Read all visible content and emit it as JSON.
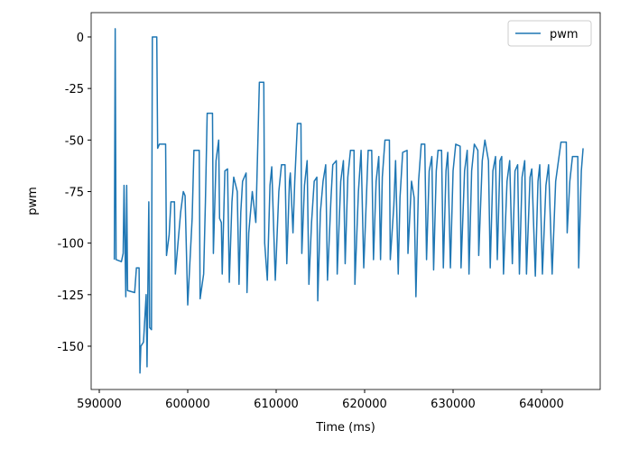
{
  "chart_data": {
    "type": "line",
    "xlabel": "Time (ms)",
    "ylabel": "pwm",
    "x": [
      591700,
      591800,
      591900,
      592500,
      592700,
      592800,
      593000,
      593100,
      593200,
      594000,
      594200,
      594500,
      594600,
      594700,
      595000,
      595300,
      595400,
      595600,
      595700,
      595900,
      596000,
      596500,
      596600,
      596800,
      597500,
      597600,
      597900,
      598100,
      598500,
      598600,
      599200,
      599500,
      599700,
      600000,
      600500,
      600700,
      601300,
      601400,
      601800,
      602000,
      602200,
      602800,
      602900,
      603200,
      603500,
      603600,
      603800,
      603900,
      604200,
      604500,
      604700,
      605000,
      605200,
      605600,
      605800,
      606000,
      606200,
      606600,
      606700,
      606900,
      607300,
      607700,
      608100,
      608600,
      608700,
      609000,
      609300,
      609500,
      609900,
      610300,
      610600,
      611000,
      611200,
      611500,
      611600,
      611900,
      612100,
      612400,
      612800,
      612900,
      613200,
      613500,
      613700,
      614000,
      614300,
      614600,
      614700,
      615000,
      615300,
      615600,
      615800,
      616200,
      616400,
      616800,
      616900,
      617300,
      617600,
      617800,
      618100,
      618400,
      618800,
      618900,
      619300,
      619600,
      619900,
      620200,
      620400,
      620800,
      621000,
      621300,
      621600,
      621800,
      622000,
      622300,
      622800,
      622900,
      623300,
      623500,
      623800,
      624000,
      624300,
      624800,
      624900,
      625300,
      625600,
      625800,
      626100,
      626400,
      626800,
      627000,
      627300,
      627600,
      627800,
      628100,
      628300,
      628700,
      628900,
      629200,
      629400,
      629700,
      630000,
      630300,
      630800,
      630900,
      631300,
      631600,
      631800,
      632100,
      632400,
      632800,
      632900,
      633300,
      633600,
      634000,
      634200,
      634500,
      634800,
      635000,
      635300,
      635500,
      635700,
      636100,
      636400,
      636700,
      637000,
      637300,
      637500,
      637800,
      638100,
      638300,
      638700,
      638900,
      639300,
      639600,
      639800,
      640100,
      640500,
      640800,
      641200,
      641600,
      642200,
      642800,
      642900,
      643200,
      643500,
      644100,
      644200,
      644500,
      644700
    ],
    "series": [
      {
        "name": "pwm",
        "color": "#1f77b4",
        "values": [
          -108,
          4,
          -108,
          -109,
          -105,
          -72,
          -126,
          -72,
          -123,
          -124,
          -112,
          -112,
          -163,
          -150,
          -148,
          -125,
          -160,
          -80,
          -141,
          -142,
          0,
          0,
          -54,
          -52,
          -52,
          -106,
          -96,
          -80,
          -80,
          -115,
          -85,
          -75,
          -77,
          -130,
          -88,
          -55,
          -55,
          -127,
          -115,
          -80,
          -37,
          -37,
          -105,
          -60,
          -50,
          -88,
          -90,
          -115,
          -65,
          -64,
          -119,
          -80,
          -68,
          -75,
          -120,
          -85,
          -70,
          -66,
          -124,
          -95,
          -75,
          -90,
          -22,
          -22,
          -100,
          -118,
          -72,
          -63,
          -118,
          -75,
          -62,
          -62,
          -110,
          -70,
          -66,
          -95,
          -70,
          -42,
          -42,
          -105,
          -72,
          -60,
          -120,
          -90,
          -70,
          -68,
          -128,
          -85,
          -70,
          -62,
          -118,
          -78,
          -62,
          -60,
          -115,
          -70,
          -60,
          -110,
          -68,
          -55,
          -55,
          -120,
          -75,
          -55,
          -112,
          -78,
          -55,
          -55,
          -108,
          -70,
          -58,
          -108,
          -68,
          -50,
          -50,
          -108,
          -82,
          -60,
          -115,
          -78,
          -56,
          -55,
          -105,
          -70,
          -78,
          -126,
          -70,
          -52,
          -52,
          -108,
          -65,
          -58,
          -113,
          -65,
          -55,
          -55,
          -112,
          -65,
          -56,
          -112,
          -65,
          -52,
          -53,
          -112,
          -65,
          -55,
          -115,
          -65,
          -52,
          -55,
          -106,
          -60,
          -50,
          -60,
          -112,
          -65,
          -58,
          -108,
          -60,
          -58,
          -115,
          -70,
          -60,
          -110,
          -65,
          -62,
          -115,
          -68,
          -60,
          -115,
          -68,
          -64,
          -116,
          -70,
          -62,
          -115,
          -72,
          -62,
          -115,
          -70,
          -51,
          -51,
          -95,
          -70,
          -58,
          -58,
          -112,
          -65,
          -54
        ]
      }
    ],
    "xlim": [
      589082,
      646633
    ],
    "ylim": [
      -171,
      11.8
    ],
    "xticks": [
      590000,
      600000,
      610000,
      620000,
      630000,
      640000
    ],
    "yticks": [
      0,
      -25,
      -50,
      -75,
      -100,
      -125,
      -150
    ],
    "legend": "upper right",
    "grid": false
  }
}
